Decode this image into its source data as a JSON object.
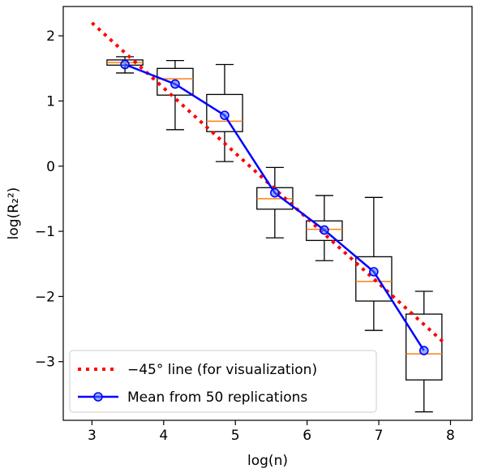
{
  "chart_data": {
    "type": "box",
    "xlabel": "log(n)",
    "ylabel": "log(R₂²)",
    "xlim": [
      2.6,
      8.3
    ],
    "ylim": [
      -3.9,
      2.45
    ],
    "xticks": [
      3,
      4,
      5,
      6,
      7,
      8
    ],
    "yticks": [
      -3,
      -2,
      -1,
      0,
      1,
      2
    ],
    "xtick_labels": [
      "3",
      "4",
      "5",
      "6",
      "7",
      "8"
    ],
    "ytick_labels": [
      "−3",
      "−2",
      "−1",
      "0",
      "1",
      "2"
    ],
    "grid": false,
    "legend_position": "lower-left",
    "boxes": [
      {
        "x": 3.46,
        "whisker_low": 1.43,
        "q1": 1.55,
        "median": 1.59,
        "q3": 1.63,
        "whisker_high": 1.68
      },
      {
        "x": 4.16,
        "whisker_low": 0.56,
        "q1": 1.09,
        "median": 1.34,
        "q3": 1.5,
        "whisker_high": 1.62
      },
      {
        "x": 4.85,
        "whisker_low": 0.07,
        "q1": 0.53,
        "median": 0.69,
        "q3": 1.1,
        "whisker_high": 1.56
      },
      {
        "x": 5.55,
        "whisker_low": -1.1,
        "q1": -0.66,
        "median": -0.5,
        "q3": -0.33,
        "whisker_high": -0.02
      },
      {
        "x": 6.24,
        "whisker_low": -1.45,
        "q1": -1.14,
        "median": -0.97,
        "q3": -0.84,
        "whisker_high": -0.45
      },
      {
        "x": 6.93,
        "whisker_low": -2.52,
        "q1": -2.07,
        "median": -1.77,
        "q3": -1.39,
        "whisker_high": -0.48
      },
      {
        "x": 7.63,
        "whisker_low": -3.77,
        "q1": -3.28,
        "median": -2.88,
        "q3": -2.27,
        "whisker_high": -1.92
      }
    ],
    "series": [
      {
        "name": "−45° line (for visualization)",
        "style": "dotted",
        "color": "#ff0000",
        "x": [
          3.0,
          7.9
        ],
        "y": [
          2.2,
          -2.7
        ]
      },
      {
        "name": "Mean from 50 replications",
        "style": "solid-circle-markers",
        "color": "#0000ff",
        "x": [
          3.46,
          4.16,
          4.85,
          5.55,
          6.24,
          6.93,
          7.63
        ],
        "y": [
          1.56,
          1.26,
          0.78,
          -0.41,
          -0.98,
          -1.62,
          -2.83
        ]
      }
    ],
    "colors": {
      "box": "#000000",
      "median": "#ff7f0e",
      "line45": "#ff0000",
      "mean": "#0000ff"
    }
  }
}
